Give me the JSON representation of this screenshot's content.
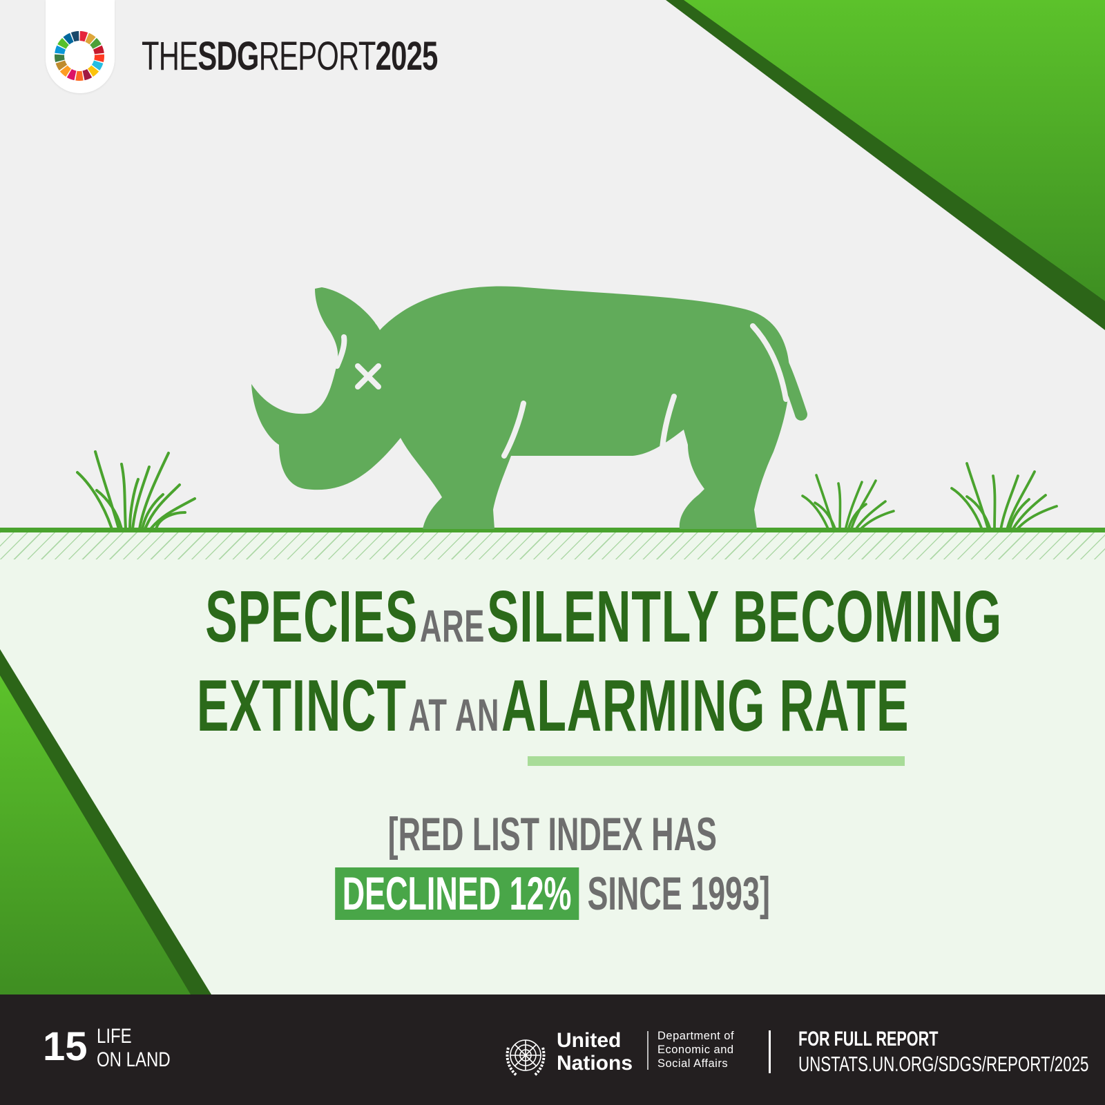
{
  "brand": {
    "prefix": "THE",
    "sdg": "SDG",
    "report": "REPORT",
    "year": "2025"
  },
  "headline": {
    "line1": {
      "word1": "SPECIES",
      "word2": "ARE",
      "word3": "SILENTLY BECOMING"
    },
    "line2": {
      "word1": "EXTINCT",
      "word2": "AT AN",
      "word3": "ALARMING RATE"
    }
  },
  "statistic": {
    "line1": "[RED LIST INDEX HAS",
    "highlight": "DECLINED 12%",
    "line2_rest": "SINCE 1993]"
  },
  "footer": {
    "goal_number": "15",
    "goal_name_line1": "LIFE",
    "goal_name_line2": "ON LAND",
    "un_line1": "United",
    "un_line2": "Nations",
    "desa_line1": "Department of",
    "desa_line2": "Economic and",
    "desa_line3": "Social Affairs",
    "report_label": "FOR FULL REPORT",
    "report_url": "UNSTATS.UN.ORG/SDGS/REPORT/2025"
  },
  "colors": {
    "dark_green": "#2b6a1a",
    "bright_green": "#5cc22b",
    "rhino_green": "#61ab5a",
    "highlight_green": "#49a648",
    "underline_green": "#a8dc98",
    "footer_bg": "#231f20",
    "gray_text": "#6e6e6e"
  },
  "icons": [
    "sdg-wheel-icon",
    "rhino-icon",
    "grass-icon",
    "un-emblem-icon"
  ]
}
